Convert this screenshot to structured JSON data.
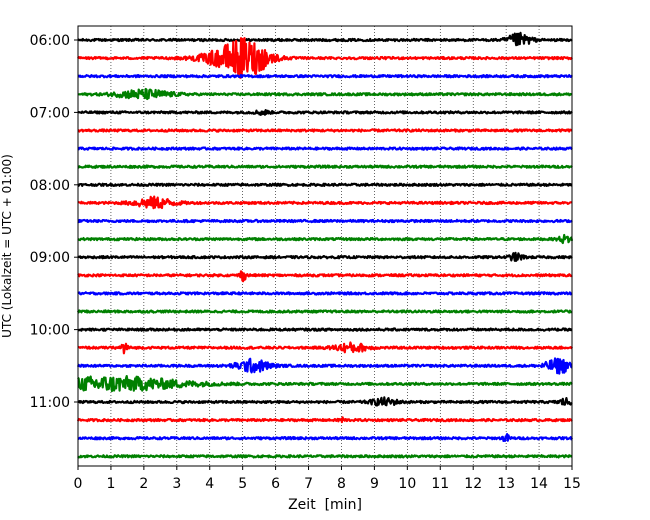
{
  "chart_data": {
    "type": "line",
    "subtype": "helicorder",
    "xlabel": "Zeit  [min]",
    "ylabel": "UTC (Lokalzeit = UTC + 01:00)",
    "xlim": [
      0,
      15
    ],
    "xticks": [
      "0",
      "1",
      "2",
      "3",
      "4",
      "5",
      "6",
      "7",
      "8",
      "9",
      "10",
      "11",
      "12",
      "13",
      "14",
      "15"
    ],
    "vertical_grid": "dotted, every 1 min",
    "row_interval_min": 15,
    "trace_count": 24,
    "trace_color_cycle": [
      "#000000",
      "#ff0000",
      "#0000ff",
      "#008000"
    ],
    "ytick_labels": [
      {
        "row": 0,
        "label": "06:00"
      },
      {
        "row": 4,
        "label": "07:00"
      },
      {
        "row": 8,
        "label": "08:00"
      },
      {
        "row": 12,
        "label": "09:00"
      },
      {
        "row": 16,
        "label": "10:00"
      },
      {
        "row": 20,
        "label": "11:00"
      }
    ],
    "events": [
      {
        "row": 0,
        "t": 13.4,
        "amp": 0.35,
        "w": 0.35
      },
      {
        "row": 1,
        "t": 5.1,
        "amp": 1.0,
        "w": 0.7
      },
      {
        "row": 1,
        "t": 4.3,
        "amp": 0.25,
        "w": 0.8
      },
      {
        "row": 3,
        "t": 2.0,
        "amp": 0.25,
        "w": 0.8
      },
      {
        "row": 4,
        "t": 5.6,
        "amp": 0.12,
        "w": 0.2
      },
      {
        "row": 9,
        "t": 2.3,
        "amp": 0.3,
        "w": 0.6
      },
      {
        "row": 11,
        "t": 14.8,
        "amp": 0.2,
        "w": 0.2
      },
      {
        "row": 12,
        "t": 13.3,
        "amp": 0.2,
        "w": 0.2
      },
      {
        "row": 13,
        "t": 5.0,
        "amp": 0.3,
        "w": 0.1
      },
      {
        "row": 17,
        "t": 1.4,
        "amp": 0.4,
        "w": 0.1
      },
      {
        "row": 17,
        "t": 8.3,
        "amp": 0.25,
        "w": 0.5
      },
      {
        "row": 18,
        "t": 5.3,
        "amp": 0.35,
        "w": 0.5
      },
      {
        "row": 18,
        "t": 14.6,
        "amp": 0.4,
        "w": 0.4
      },
      {
        "row": 19,
        "t": 1.0,
        "amp": 0.4,
        "w": 2.2
      },
      {
        "row": 20,
        "t": 9.3,
        "amp": 0.2,
        "w": 0.4
      },
      {
        "row": 20,
        "t": 14.8,
        "amp": 0.2,
        "w": 0.2
      },
      {
        "row": 21,
        "t": 8.0,
        "amp": 0.15,
        "w": 0.1
      },
      {
        "row": 22,
        "t": 13.0,
        "amp": 0.2,
        "w": 0.1
      }
    ]
  }
}
